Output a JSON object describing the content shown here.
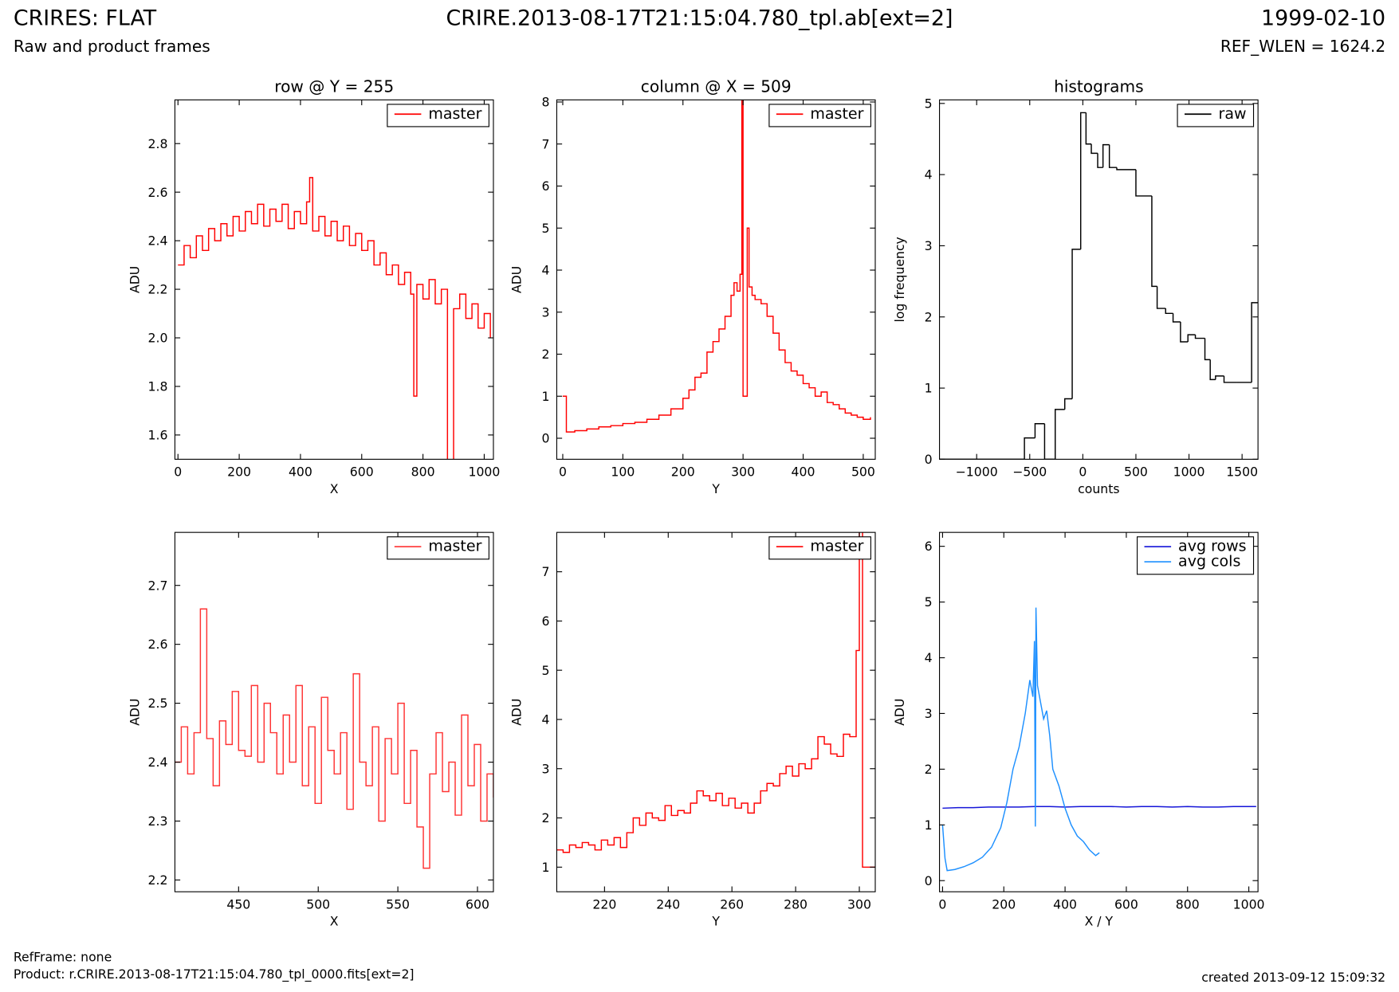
{
  "header": {
    "title": "CRIRES: FLAT",
    "subtitle": "Raw and product frames",
    "file": "CRIRE.2013-08-17T21:15:04.780_tpl.ab[ext=2]",
    "date": "1999-02-10",
    "ref": "REF_WLEN = 1624.2"
  },
  "footer": {
    "refframe": "RefFrame: none",
    "product": "Product: r.CRIRE.2013-08-17T21:15:04.780_tpl_0000.fits[ext=2]",
    "created": "created 2013-09-12 15:09:32"
  },
  "chart_data": [
    {
      "type": "line",
      "step": true,
      "title": "row @ Y = 255",
      "xlabel": "X",
      "ylabel": "ADU",
      "legend": "upper right",
      "x": [
        0,
        20,
        40,
        60,
        80,
        100,
        120,
        140,
        160,
        180,
        200,
        220,
        240,
        260,
        280,
        300,
        320,
        340,
        360,
        380,
        400,
        420,
        430,
        440,
        460,
        480,
        500,
        520,
        540,
        560,
        580,
        600,
        620,
        640,
        660,
        680,
        700,
        720,
        740,
        760,
        770,
        780,
        800,
        820,
        840,
        860,
        880,
        900,
        920,
        940,
        960,
        980,
        1000,
        1020
      ],
      "series": [
        {
          "name": "master",
          "color": "#ff0000",
          "values": [
            2.3,
            2.38,
            2.33,
            2.42,
            2.36,
            2.45,
            2.4,
            2.47,
            2.42,
            2.5,
            2.44,
            2.52,
            2.47,
            2.55,
            2.46,
            2.53,
            2.48,
            2.55,
            2.45,
            2.52,
            2.47,
            2.56,
            2.66,
            2.44,
            2.5,
            2.42,
            2.48,
            2.4,
            2.46,
            2.38,
            2.43,
            2.36,
            2.4,
            2.3,
            2.35,
            2.26,
            2.3,
            2.22,
            2.27,
            2.18,
            1.76,
            2.22,
            2.16,
            2.24,
            2.14,
            2.2,
            1.45,
            2.12,
            2.18,
            2.08,
            2.14,
            2.04,
            2.1,
            2.0
          ]
        }
      ],
      "xlim": [
        -10,
        1030
      ],
      "ylim": [
        1.5,
        2.98
      ],
      "xticks": [
        0,
        200,
        400,
        600,
        800,
        1000
      ],
      "yticks": [
        1.6,
        1.8,
        {
          "value": 2,
          "label": "2.0"
        },
        2.2,
        2.4,
        2.6,
        2.8
      ]
    },
    {
      "type": "line",
      "step": true,
      "title": "column @ X = 509",
      "xlabel": "Y",
      "ylabel": "ADU",
      "legend": "upper right",
      "x": [
        0,
        5,
        6,
        20,
        40,
        60,
        80,
        100,
        120,
        140,
        160,
        180,
        200,
        210,
        220,
        230,
        240,
        250,
        260,
        270,
        280,
        285,
        290,
        295,
        298,
        300,
        305,
        307,
        310,
        315,
        320,
        330,
        340,
        350,
        360,
        370,
        380,
        390,
        400,
        410,
        420,
        430,
        440,
        450,
        460,
        470,
        480,
        490,
        500,
        512
      ],
      "series": [
        {
          "name": "master",
          "color": "#ff0000",
          "values": [
            1.0,
            1.0,
            0.15,
            0.18,
            0.22,
            0.27,
            0.3,
            0.35,
            0.38,
            0.45,
            0.55,
            0.7,
            0.95,
            1.15,
            1.45,
            1.55,
            2.05,
            2.3,
            2.6,
            2.9,
            3.4,
            3.7,
            3.5,
            3.9,
            8.5,
            1.0,
            1.0,
            5.0,
            3.6,
            3.4,
            3.3,
            3.2,
            2.9,
            2.5,
            2.1,
            1.8,
            1.6,
            1.5,
            1.3,
            1.2,
            1.0,
            1.1,
            0.85,
            0.8,
            0.7,
            0.6,
            0.55,
            0.5,
            0.45,
            0.5
          ]
        }
      ],
      "xlim": [
        -10,
        520
      ],
      "ylim": [
        -0.5,
        8.05
      ],
      "xticks": [
        0,
        100,
        200,
        300,
        400,
        500
      ],
      "yticks": [
        0,
        1,
        2,
        3,
        4,
        5,
        6,
        7,
        8
      ]
    },
    {
      "type": "histogram",
      "title": "histograms",
      "xlabel": "counts",
      "ylabel": "log frequency",
      "legend": "upper right",
      "bins": [
        -1350,
        -550,
        -450,
        -360,
        -260,
        -170,
        -100,
        -20,
        30,
        80,
        140,
        190,
        250,
        320,
        500,
        650,
        700,
        780,
        850,
        920,
        990,
        1060,
        1150,
        1200,
        1250,
        1330,
        1450,
        1590,
        1650
      ],
      "series": [
        {
          "name": "raw",
          "color": "#000000",
          "values": [
            0,
            0.3,
            0.5,
            0,
            0.7,
            0.85,
            2.95,
            4.87,
            4.43,
            4.3,
            4.1,
            4.42,
            4.1,
            4.07,
            3.7,
            2.43,
            2.12,
            2.05,
            1.93,
            1.65,
            1.75,
            1.7,
            1.4,
            1.12,
            1.17,
            1.08,
            1.08,
            2.2
          ]
        }
      ],
      "xlim": [
        -1350,
        1650
      ],
      "ylim": [
        0,
        5.05
      ],
      "xticks": [
        {
          "value": -1000,
          "label": "−1000"
        },
        {
          "value": -500,
          "label": "−500"
        },
        0,
        500,
        1000,
        1500
      ],
      "yticks": [
        0,
        1,
        2,
        3,
        4,
        5
      ]
    },
    {
      "type": "line",
      "step": true,
      "xlabel": "X",
      "ylabel": "ADU",
      "legend": "upper right",
      "x": [
        410,
        414,
        418,
        422,
        426,
        430,
        434,
        438,
        442,
        446,
        450,
        454,
        458,
        462,
        466,
        470,
        474,
        478,
        482,
        486,
        490,
        494,
        498,
        502,
        506,
        510,
        514,
        518,
        522,
        526,
        530,
        534,
        538,
        542,
        546,
        550,
        554,
        558,
        562,
        566,
        570,
        574,
        578,
        582,
        586,
        590,
        594,
        598,
        602,
        606,
        610
      ],
      "series": [
        {
          "name": "master",
          "color": "#ff3333",
          "values": [
            2.4,
            2.46,
            2.38,
            2.45,
            2.66,
            2.44,
            2.36,
            2.47,
            2.43,
            2.52,
            2.42,
            2.41,
            2.53,
            2.4,
            2.5,
            2.45,
            2.38,
            2.48,
            2.4,
            2.53,
            2.36,
            2.46,
            2.33,
            2.51,
            2.42,
            2.38,
            2.45,
            2.32,
            2.55,
            2.4,
            2.36,
            2.46,
            2.3,
            2.44,
            2.38,
            2.5,
            2.33,
            2.42,
            2.29,
            2.22,
            2.38,
            2.45,
            2.35,
            2.4,
            2.31,
            2.48,
            2.36,
            2.43,
            2.3,
            2.38,
            2.34
          ]
        }
      ],
      "xlim": [
        410,
        610
      ],
      "ylim": [
        2.18,
        2.79
      ],
      "xticks": [
        450,
        500,
        550,
        600
      ],
      "yticks": [
        2.2,
        2.3,
        2.4,
        2.5,
        2.6,
        2.7
      ]
    },
    {
      "type": "line",
      "step": true,
      "xlabel": "Y",
      "ylabel": "ADU",
      "legend": "upper right",
      "x": [
        205,
        207,
        209,
        211,
        213,
        215,
        217,
        219,
        221,
        223,
        225,
        227,
        229,
        231,
        233,
        235,
        237,
        239,
        241,
        243,
        245,
        247,
        249,
        251,
        253,
        255,
        257,
        259,
        261,
        263,
        265,
        267,
        269,
        271,
        273,
        275,
        277,
        279,
        281,
        283,
        285,
        287,
        289,
        291,
        293,
        295,
        297,
        299,
        300,
        301,
        303,
        305
      ],
      "series": [
        {
          "name": "master",
          "color": "#ff0000",
          "values": [
            1.35,
            1.3,
            1.45,
            1.4,
            1.5,
            1.45,
            1.35,
            1.55,
            1.45,
            1.6,
            1.4,
            1.7,
            2.0,
            1.85,
            2.1,
            2.0,
            1.95,
            2.25,
            2.05,
            2.15,
            2.1,
            2.3,
            2.55,
            2.45,
            2.35,
            2.5,
            2.25,
            2.4,
            2.2,
            2.3,
            2.1,
            2.3,
            2.55,
            2.7,
            2.65,
            2.9,
            3.05,
            2.85,
            3.1,
            3.0,
            3.2,
            3.65,
            3.5,
            3.3,
            3.25,
            3.7,
            3.65,
            5.4,
            7.9,
            1.0,
            1.0,
            1.0
          ]
        }
      ],
      "xlim": [
        205,
        305
      ],
      "ylim": [
        0.5,
        7.8
      ],
      "xticks": [
        220,
        240,
        260,
        280,
        300
      ],
      "yticks": [
        1,
        2,
        3,
        4,
        5,
        6,
        7
      ]
    },
    {
      "type": "line",
      "step": false,
      "xlabel": "X / Y",
      "ylabel": "ADU",
      "legend": "upper right",
      "series": [
        {
          "name": "avg rows",
          "color": "#1515d8",
          "x": [
            0,
            50,
            100,
            150,
            200,
            250,
            300,
            350,
            400,
            450,
            500,
            550,
            600,
            650,
            700,
            750,
            800,
            850,
            900,
            950,
            1000,
            1024
          ],
          "values": [
            1.3,
            1.31,
            1.31,
            1.32,
            1.32,
            1.32,
            1.33,
            1.33,
            1.32,
            1.33,
            1.33,
            1.33,
            1.32,
            1.33,
            1.33,
            1.32,
            1.33,
            1.32,
            1.32,
            1.33,
            1.33,
            1.33
          ]
        },
        {
          "name": "avg cols",
          "color": "#1e90ff",
          "x": [
            0,
            8,
            15,
            40,
            70,
            100,
            130,
            160,
            190,
            210,
            230,
            250,
            270,
            285,
            295,
            300,
            303,
            305,
            310,
            320,
            330,
            340,
            350,
            360,
            380,
            400,
            420,
            440,
            460,
            480,
            500,
            512
          ],
          "values": [
            1.0,
            0.4,
            0.18,
            0.2,
            0.25,
            0.32,
            0.42,
            0.6,
            0.95,
            1.4,
            2.0,
            2.4,
            3.0,
            3.6,
            3.3,
            4.3,
            0.97,
            4.9,
            3.5,
            3.2,
            2.9,
            3.05,
            2.6,
            2.0,
            1.7,
            1.3,
            1.0,
            0.8,
            0.7,
            0.55,
            0.45,
            0.5
          ]
        }
      ],
      "xlim": [
        -10,
        1030
      ],
      "ylim": [
        -0.2,
        6.25
      ],
      "xticks": [
        0,
        200,
        400,
        600,
        800,
        1000
      ],
      "yticks": [
        0,
        1,
        2,
        3,
        4,
        5,
        6
      ]
    }
  ]
}
